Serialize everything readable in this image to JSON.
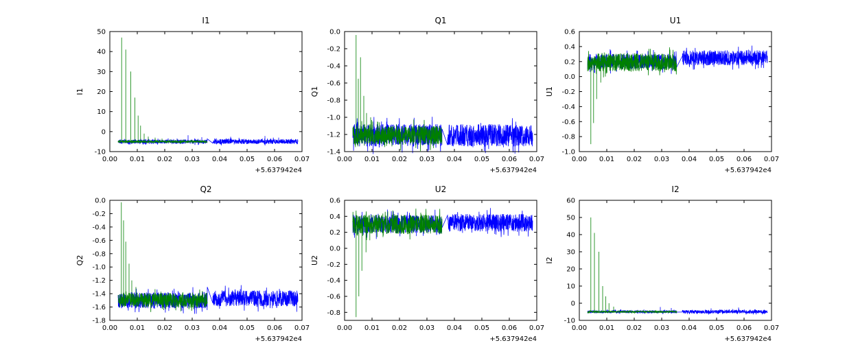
{
  "figure": {
    "background": "#ffffff",
    "frame_color": "#000000",
    "tick_label_color": "#000000"
  },
  "chart_data": [
    {
      "type": "line",
      "title": "I1",
      "ylabel": "I1",
      "xlabel": "",
      "x_offset_label": "+5.637942e4",
      "xlim": [
        0,
        0.07
      ],
      "ylim": [
        -10,
        50
      ],
      "xticks": [
        0,
        0.01,
        0.02,
        0.03,
        0.04,
        0.05,
        0.06,
        0.07
      ],
      "yticks": [
        -10,
        0,
        10,
        20,
        30,
        40,
        50
      ],
      "xtick_decimals": 2,
      "ytick_decimals": 0,
      "grid": false,
      "legend": null,
      "series": [
        {
          "name": "blue-series",
          "color": "#0000ff",
          "segments": [
            {
              "x0": 0.003,
              "x1": 0.0355,
              "base": -5,
              "amp": 1.0,
              "points": 600
            },
            {
              "x0": 0.0375,
              "x1": 0.0685,
              "base": -5,
              "amp": 1.2,
              "points": 600
            }
          ],
          "spikes": [
            {
              "x": 0.0285,
              "y": -1.8
            },
            {
              "x": 0.0335,
              "y": -2.8
            },
            {
              "x": 0.044,
              "y": -2.6
            },
            {
              "x": 0.0565,
              "y": -2.2
            },
            {
              "x": 0.0615,
              "y": -3.0
            }
          ]
        },
        {
          "name": "green-series",
          "color": "#008000",
          "segments": [
            {
              "x0": 0.003,
              "x1": 0.0355,
              "base": -5,
              "amp": 0.6,
              "points": 600
            }
          ],
          "spikes": [
            {
              "x": 0.0043,
              "y": 47
            },
            {
              "x": 0.0058,
              "y": 41
            },
            {
              "x": 0.0076,
              "y": 30
            },
            {
              "x": 0.0091,
              "y": 17
            },
            {
              "x": 0.0103,
              "y": 8
            },
            {
              "x": 0.0112,
              "y": 3
            },
            {
              "x": 0.0125,
              "y": -1
            },
            {
              "x": 0.014,
              "y": -2.5
            },
            {
              "x": 0.0165,
              "y": -3
            },
            {
              "x": 0.019,
              "y": -3.5
            },
            {
              "x": 0.022,
              "y": -3.8
            }
          ]
        }
      ]
    },
    {
      "type": "line",
      "title": "Q1",
      "ylabel": "Q1",
      "xlabel": "",
      "x_offset_label": "+5.637942e4",
      "xlim": [
        0,
        0.07
      ],
      "ylim": [
        -1.4,
        0
      ],
      "xticks": [
        0,
        0.01,
        0.02,
        0.03,
        0.04,
        0.05,
        0.06,
        0.07
      ],
      "yticks": [
        -1.4,
        -1.2,
        -1.0,
        -0.8,
        -0.6,
        -0.4,
        -0.2,
        0.0
      ],
      "xtick_decimals": 2,
      "ytick_decimals": 1,
      "grid": false,
      "legend": null,
      "series": [
        {
          "name": "blue-series",
          "color": "#0000ff",
          "segments": [
            {
              "x0": 0.003,
              "x1": 0.0355,
              "base": -1.21,
              "amp": 0.13,
              "points": 600
            },
            {
              "x0": 0.0375,
              "x1": 0.0685,
              "base": -1.21,
              "amp": 0.13,
              "points": 600
            }
          ],
          "spikes": []
        },
        {
          "name": "green-series",
          "color": "#008000",
          "segments": [
            {
              "x0": 0.003,
              "x1": 0.0355,
              "base": -1.21,
              "amp": 0.11,
              "points": 600
            }
          ],
          "spikes": [
            {
              "x": 0.0042,
              "y": -0.04
            },
            {
              "x": 0.005,
              "y": -0.55
            },
            {
              "x": 0.0058,
              "y": -0.3
            },
            {
              "x": 0.007,
              "y": -0.75
            },
            {
              "x": 0.008,
              "y": -0.95
            },
            {
              "x": 0.0095,
              "y": -1.0
            },
            {
              "x": 0.012,
              "y": -1.05
            }
          ]
        }
      ]
    },
    {
      "type": "line",
      "title": "U1",
      "ylabel": "U1",
      "xlabel": "",
      "x_offset_label": "+5.637942e4",
      "xlim": [
        0,
        0.07
      ],
      "ylim": [
        -1.0,
        0.6
      ],
      "xticks": [
        0,
        0.01,
        0.02,
        0.03,
        0.04,
        0.05,
        0.06,
        0.07
      ],
      "yticks": [
        -1.0,
        -0.8,
        -0.6,
        -0.4,
        -0.2,
        0.0,
        0.2,
        0.4,
        0.6
      ],
      "xtick_decimals": 2,
      "ytick_decimals": 1,
      "grid": false,
      "legend": null,
      "series": [
        {
          "name": "blue-series",
          "color": "#0000ff",
          "segments": [
            {
              "x0": 0.003,
              "x1": 0.0355,
              "base": 0.2,
              "amp": 0.1,
              "points": 600
            },
            {
              "x0": 0.0375,
              "x1": 0.0685,
              "base": 0.25,
              "amp": 0.1,
              "points": 600
            }
          ],
          "spikes": []
        },
        {
          "name": "green-series",
          "color": "#008000",
          "segments": [
            {
              "x0": 0.003,
              "x1": 0.0355,
              "base": 0.19,
              "amp": 0.12,
              "points": 600
            }
          ],
          "spikes": [
            {
              "x": 0.0042,
              "y": -0.9
            },
            {
              "x": 0.0052,
              "y": -0.62
            },
            {
              "x": 0.0063,
              "y": -0.3
            },
            {
              "x": 0.0078,
              "y": -0.08
            },
            {
              "x": 0.0095,
              "y": 0.0
            }
          ]
        }
      ]
    },
    {
      "type": "line",
      "title": "Q2",
      "ylabel": "Q2",
      "xlabel": "",
      "x_offset_label": "+5.637942e4",
      "xlim": [
        0,
        0.07
      ],
      "ylim": [
        -1.8,
        0
      ],
      "xticks": [
        0,
        0.01,
        0.02,
        0.03,
        0.04,
        0.05,
        0.06,
        0.07
      ],
      "yticks": [
        -1.8,
        -1.6,
        -1.4,
        -1.2,
        -1.0,
        -0.8,
        -0.6,
        -0.4,
        -0.2,
        0.0
      ],
      "xtick_decimals": 2,
      "ytick_decimals": 1,
      "grid": false,
      "legend": null,
      "series": [
        {
          "name": "blue-series",
          "color": "#0000ff",
          "segments": [
            {
              "x0": 0.003,
              "x1": 0.0355,
              "base": -1.5,
              "amp": 0.12,
              "points": 600
            },
            {
              "x0": 0.0375,
              "x1": 0.0685,
              "base": -1.47,
              "amp": 0.12,
              "points": 600
            }
          ],
          "spikes": []
        },
        {
          "name": "green-series",
          "color": "#008000",
          "segments": [
            {
              "x0": 0.003,
              "x1": 0.0355,
              "base": -1.5,
              "amp": 0.11,
              "points": 600
            }
          ],
          "spikes": [
            {
              "x": 0.0042,
              "y": -0.03
            },
            {
              "x": 0.005,
              "y": -0.3
            },
            {
              "x": 0.0058,
              "y": -0.62
            },
            {
              "x": 0.007,
              "y": -0.95
            },
            {
              "x": 0.008,
              "y": -1.2
            },
            {
              "x": 0.0095,
              "y": -1.3
            }
          ]
        }
      ]
    },
    {
      "type": "line",
      "title": "U2",
      "ylabel": "U2",
      "xlabel": "",
      "x_offset_label": "+5.637942e4",
      "xlim": [
        0,
        0.07
      ],
      "ylim": [
        -0.9,
        0.6
      ],
      "xticks": [
        0,
        0.01,
        0.02,
        0.03,
        0.04,
        0.05,
        0.06,
        0.07
      ],
      "yticks": [
        -0.8,
        -0.6,
        -0.4,
        -0.2,
        0.0,
        0.2,
        0.4,
        0.6
      ],
      "xtick_decimals": 2,
      "ytick_decimals": 1,
      "grid": false,
      "legend": null,
      "series": [
        {
          "name": "blue-series",
          "color": "#0000ff",
          "segments": [
            {
              "x0": 0.003,
              "x1": 0.0355,
              "base": 0.3,
              "amp": 0.11,
              "points": 600
            },
            {
              "x0": 0.0375,
              "x1": 0.0685,
              "base": 0.32,
              "amp": 0.11,
              "points": 600
            }
          ],
          "spikes": []
        },
        {
          "name": "green-series",
          "color": "#008000",
          "segments": [
            {
              "x0": 0.003,
              "x1": 0.0355,
              "base": 0.3,
              "amp": 0.12,
              "points": 600
            }
          ],
          "spikes": [
            {
              "x": 0.0042,
              "y": -0.86
            },
            {
              "x": 0.0052,
              "y": -0.6
            },
            {
              "x": 0.0063,
              "y": -0.28
            },
            {
              "x": 0.0078,
              "y": -0.05
            },
            {
              "x": 0.0092,
              "y": 0.1
            }
          ]
        }
      ]
    },
    {
      "type": "line",
      "title": "I2",
      "ylabel": "I2",
      "xlabel": "",
      "x_offset_label": "+5.637942e4",
      "xlim": [
        0,
        0.07
      ],
      "ylim": [
        -10,
        60
      ],
      "xticks": [
        0,
        0.01,
        0.02,
        0.03,
        0.04,
        0.05,
        0.06,
        0.07
      ],
      "yticks": [
        -10,
        0,
        10,
        20,
        30,
        40,
        50,
        60
      ],
      "xtick_decimals": 2,
      "ytick_decimals": 0,
      "grid": false,
      "legend": null,
      "series": [
        {
          "name": "blue-series",
          "color": "#0000ff",
          "segments": [
            {
              "x0": 0.003,
              "x1": 0.0355,
              "base": -5,
              "amp": 0.8,
              "points": 600
            },
            {
              "x0": 0.0375,
              "x1": 0.0685,
              "base": -5,
              "amp": 1.0,
              "points": 600
            }
          ],
          "spikes": [
            {
              "x": 0.0295,
              "y": -2.2
            },
            {
              "x": 0.0335,
              "y": -2.8
            },
            {
              "x": 0.048,
              "y": -3.0
            },
            {
              "x": 0.058,
              "y": -2.5
            }
          ]
        },
        {
          "name": "green-series",
          "color": "#008000",
          "segments": [
            {
              "x0": 0.003,
              "x1": 0.0355,
              "base": -5,
              "amp": 0.5,
              "points": 600
            }
          ],
          "spikes": [
            {
              "x": 0.0042,
              "y": 50
            },
            {
              "x": 0.0055,
              "y": 41
            },
            {
              "x": 0.0071,
              "y": 30
            },
            {
              "x": 0.0085,
              "y": 10
            },
            {
              "x": 0.0096,
              "y": 4
            },
            {
              "x": 0.0108,
              "y": 0
            },
            {
              "x": 0.0125,
              "y": -2
            }
          ]
        }
      ]
    }
  ]
}
